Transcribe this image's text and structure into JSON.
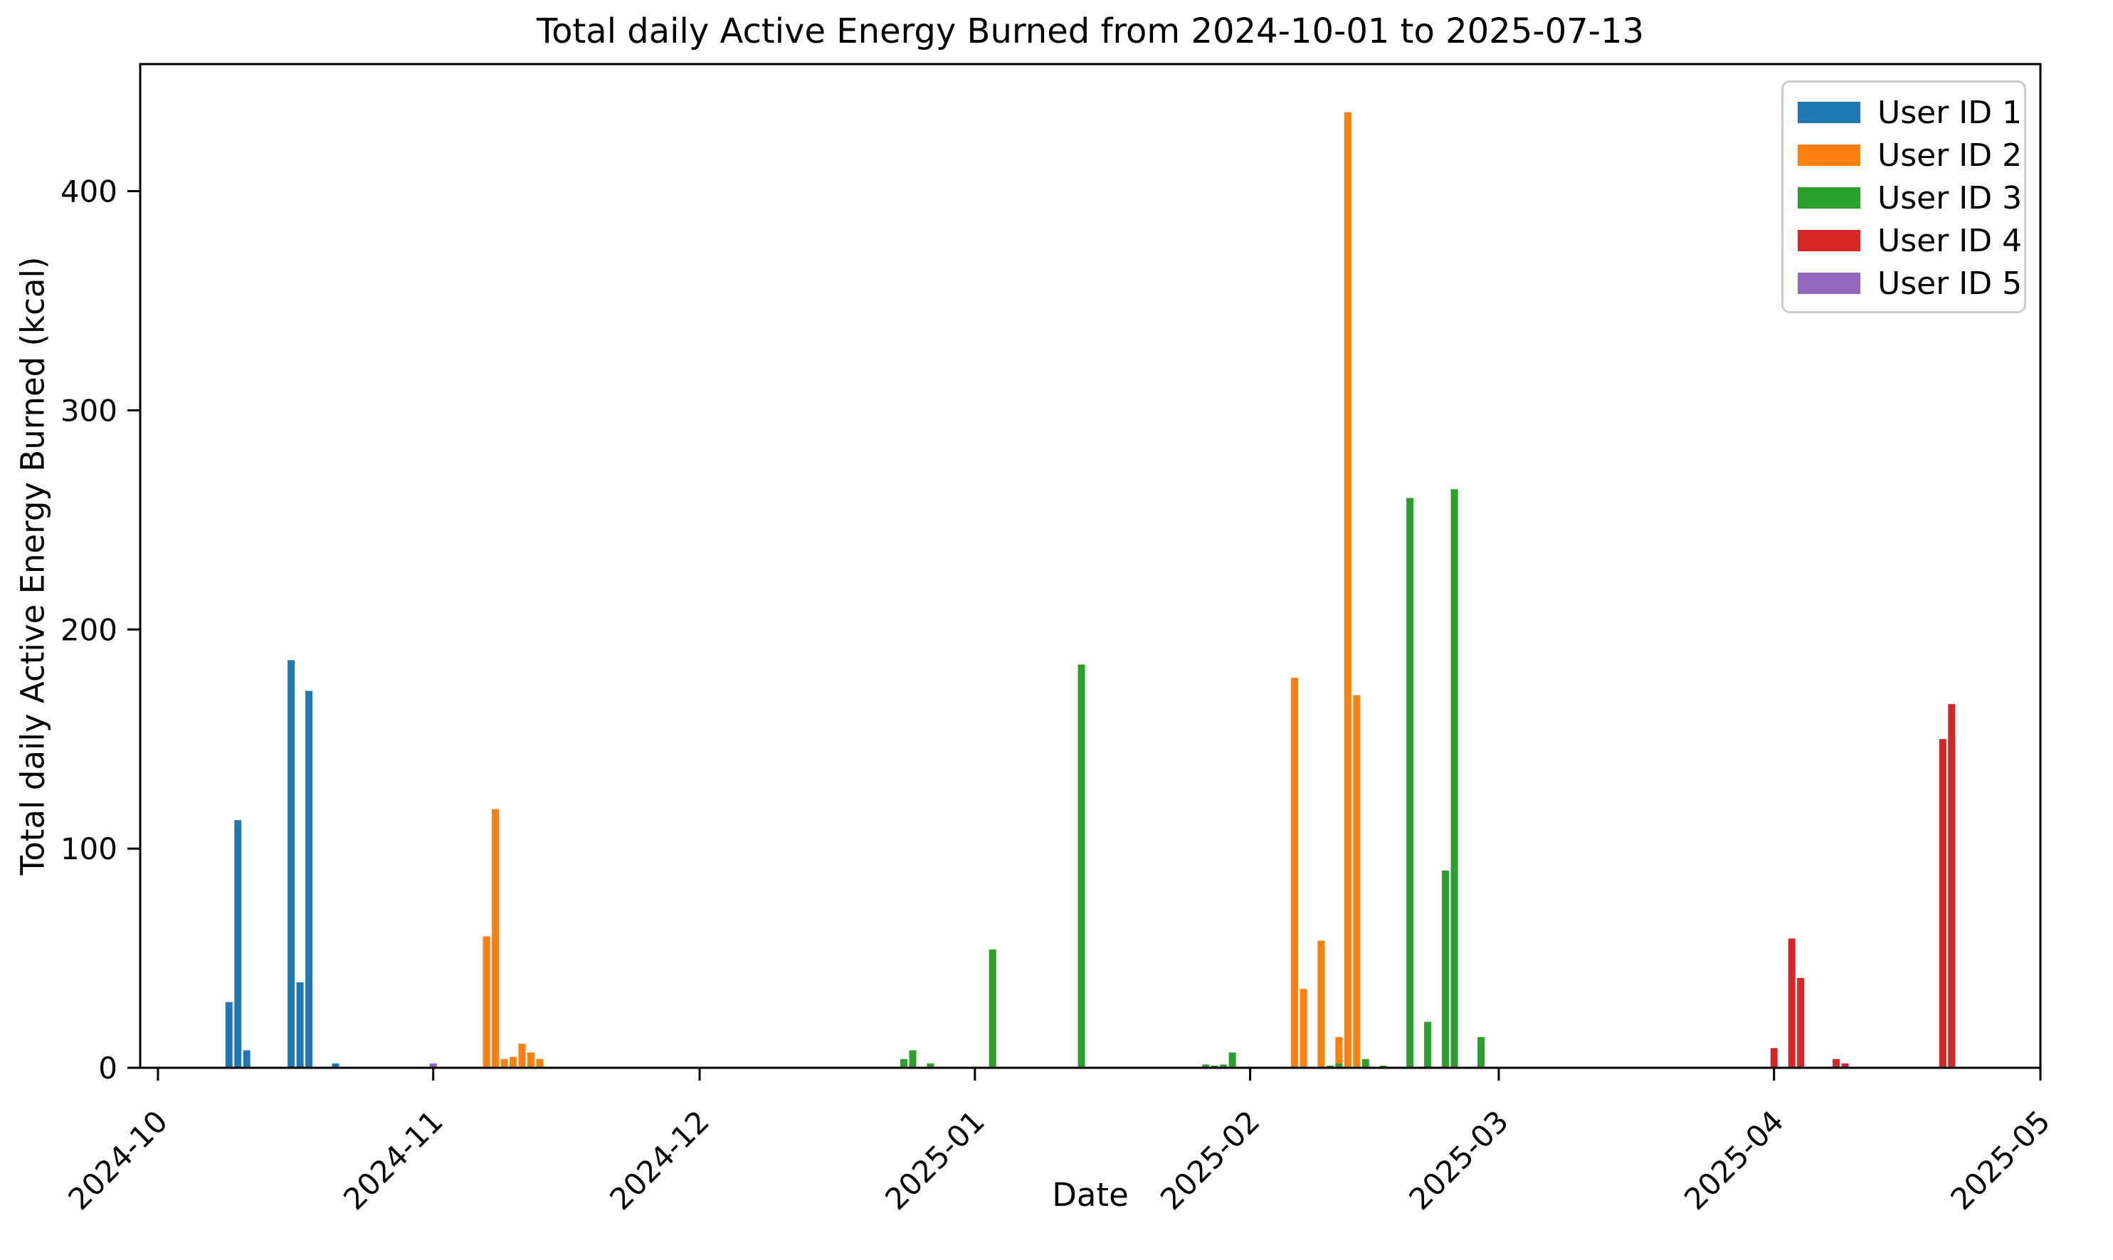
{
  "chart_data": {
    "type": "bar",
    "title": "Total daily Active Energy Burned from 2024-10-01 to 2025-07-13",
    "xlabel": "Date",
    "ylabel": "Total daily Active Energy Burned (kcal)",
    "grid": false,
    "legend_position": "upper right",
    "ylim": [
      0,
      458
    ],
    "yticks": [
      0,
      100,
      200,
      300,
      400
    ],
    "x_axis": {
      "start": "2024-09-29",
      "end": "2025-05-01",
      "tick_dates": [
        "2024-10-01",
        "2024-11-01",
        "2024-12-01",
        "2025-01-01",
        "2025-02-01",
        "2025-03-01",
        "2025-04-01",
        "2025-05-01"
      ],
      "tick_labels": [
        "2024-10",
        "2024-11",
        "2024-12",
        "2025-01",
        "2025-02",
        "2025-03",
        "2025-04",
        "2025-05"
      ],
      "tick_rotation_deg": 45
    },
    "series": [
      {
        "name": "User ID 1",
        "color": "#1f77b4",
        "points": [
          {
            "date": "2024-10-09",
            "value": 30
          },
          {
            "date": "2024-10-10",
            "value": 113
          },
          {
            "date": "2024-10-11",
            "value": 8
          },
          {
            "date": "2024-10-16",
            "value": 186
          },
          {
            "date": "2024-10-17",
            "value": 39
          },
          {
            "date": "2024-10-18",
            "value": 172
          },
          {
            "date": "2024-10-21",
            "value": 2
          }
        ]
      },
      {
        "name": "User ID 2",
        "color": "#ff7f0e",
        "points": [
          {
            "date": "2024-11-07",
            "value": 60
          },
          {
            "date": "2024-11-08",
            "value": 118
          },
          {
            "date": "2024-11-09",
            "value": 4
          },
          {
            "date": "2024-11-10",
            "value": 5
          },
          {
            "date": "2024-11-11",
            "value": 11
          },
          {
            "date": "2024-11-12",
            "value": 7
          },
          {
            "date": "2024-11-13",
            "value": 4
          },
          {
            "date": "2025-02-06",
            "value": 178
          },
          {
            "date": "2025-02-07",
            "value": 36
          },
          {
            "date": "2025-02-09",
            "value": 58
          },
          {
            "date": "2025-02-11",
            "value": 14
          },
          {
            "date": "2025-02-12",
            "value": 436
          },
          {
            "date": "2025-02-13",
            "value": 170
          }
        ]
      },
      {
        "name": "User ID 3",
        "color": "#2ca02c",
        "points": [
          {
            "date": "2024-12-24",
            "value": 4
          },
          {
            "date": "2024-12-25",
            "value": 8
          },
          {
            "date": "2024-12-27",
            "value": 2
          },
          {
            "date": "2025-01-03",
            "value": 54
          },
          {
            "date": "2025-01-13",
            "value": 184
          },
          {
            "date": "2025-01-27",
            "value": 1.5
          },
          {
            "date": "2025-01-28",
            "value": 1
          },
          {
            "date": "2025-01-29",
            "value": 1.5
          },
          {
            "date": "2025-01-30",
            "value": 7
          },
          {
            "date": "2025-02-10",
            "value": 1
          },
          {
            "date": "2025-02-11",
            "value": 2
          },
          {
            "date": "2025-02-14",
            "value": 4
          },
          {
            "date": "2025-02-16",
            "value": 1
          },
          {
            "date": "2025-02-19",
            "value": 260
          },
          {
            "date": "2025-02-21",
            "value": 21
          },
          {
            "date": "2025-02-23",
            "value": 90
          },
          {
            "date": "2025-02-24",
            "value": 264
          },
          {
            "date": "2025-02-27",
            "value": 14
          }
        ]
      },
      {
        "name": "User ID 4",
        "color": "#d62728",
        "points": [
          {
            "date": "2025-04-01",
            "value": 9
          },
          {
            "date": "2025-04-03",
            "value": 59
          },
          {
            "date": "2025-04-04",
            "value": 41
          },
          {
            "date": "2025-04-08",
            "value": 4
          },
          {
            "date": "2025-04-09",
            "value": 2
          },
          {
            "date": "2025-04-20",
            "value": 150
          },
          {
            "date": "2025-04-21",
            "value": 166
          }
        ]
      },
      {
        "name": "User ID 5",
        "color": "#9467bd",
        "points": [
          {
            "date": "2024-11-01",
            "value": 2
          }
        ]
      }
    ]
  }
}
